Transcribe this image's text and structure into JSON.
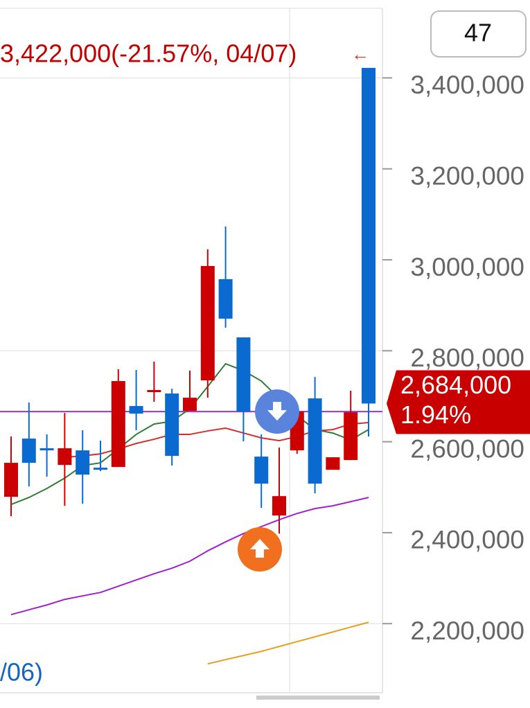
{
  "chart_data": {
    "type": "candlestick",
    "open": [
      2478900,
      2606900,
      2585600,
      2549000,
      2581000,
      2542900,
      2544400,
      2678500,
      2710500,
      2706000,
      2667900,
      2734900,
      2957400,
      2829400,
      2567300,
      2437700,
      2581000,
      2695300,
      2538300,
      2559700,
      3422000
    ],
    "high": [
      2611500,
      2686200,
      2616100,
      2663300,
      2625200,
      2602300,
      2759300,
      2757800,
      2776100,
      2716600,
      2756300,
      3023000,
      3073300,
      2829400,
      2616100,
      2587100,
      2666300,
      2742500,
      2565800,
      2712100,
      3422000
    ],
    "low": [
      2436200,
      2501800,
      2523100,
      2459100,
      2463600,
      2535300,
      2544400,
      2625200,
      2687700,
      2547500,
      2667900,
      2696800,
      2850700,
      2600800,
      2454500,
      2398100,
      2573400,
      2486500,
      2538300,
      2559700,
      2611500
    ],
    "close": [
      2553600,
      2553600,
      2581000,
      2585600,
      2527700,
      2538300,
      2733400,
      2661800,
      2713600,
      2568800,
      2696800,
      2986400,
      2870600,
      2666300,
      2507800,
      2480400,
      2666300,
      2507800,
      2565800,
      2664800,
      2684000
    ],
    "up_color": "#cc0000",
    "down_color": "#0a6ad0",
    "moving_averages": [
      {
        "color": "#2e7d32",
        "values": [
          2462100,
          2477400,
          2497200,
          2520000,
          2547500,
          2553600,
          2584000,
          2616100,
          2638900,
          2645000,
          2672400,
          2721200,
          2771500,
          2756300,
          2733400,
          2695300,
          2657200,
          2626700,
          2619100,
          2603900,
          2626700
        ]
      },
      {
        "color": "#d32f2f",
        "values": [
          null,
          null,
          null,
          2565800,
          2568800,
          2573400,
          2584000,
          2596200,
          2605400,
          2616100,
          2616100,
          2623700,
          2629800,
          2619100,
          2608400,
          2602300,
          2611500,
          2623700,
          2626700,
          2638900,
          2642000
        ]
      },
      {
        "color": "#a020d0",
        "values": [
          2219800,
          2230500,
          2241100,
          2253300,
          2261000,
          2268600,
          2282300,
          2296000,
          2309700,
          2321900,
          2337200,
          2360000,
          2379800,
          2398100,
          2413400,
          2428600,
          2442300,
          2453000,
          2459100,
          2468200,
          2477400
        ]
      },
      {
        "color": "#e6a020",
        "values": [
          null,
          null,
          null,
          null,
          null,
          null,
          null,
          null,
          null,
          null,
          null,
          2111600,
          2120800,
          2129900,
          2139000,
          2149700,
          2160400,
          2171000,
          2181700,
          2192400,
          2203000
        ]
      }
    ],
    "reference_line": {
      "value": 2666300,
      "color": "#9b30e0"
    },
    "ylim": [
      2048000,
      3553000
    ],
    "yticks": [
      {
        "value": 2200000,
        "label": "2,200,000"
      },
      {
        "value": 2400000,
        "label": "2,400,000"
      },
      {
        "value": 2600000,
        "label": "2,600,000"
      },
      {
        "value": 2800000,
        "label": "2,800,000"
      },
      {
        "value": 3000000,
        "label": "3,000,000"
      },
      {
        "value": 3200000,
        "label": "3,200,000"
      },
      {
        "value": 3400000,
        "label": "3,400,000"
      }
    ],
    "high_annotation": "3,422,000(-21.57%, 04/07)",
    "high_arrow": "←",
    "price_tag": {
      "value": 2684000,
      "label": "2,684,000",
      "change": "1.94%"
    },
    "date_label": "/06)",
    "counter": "47"
  }
}
